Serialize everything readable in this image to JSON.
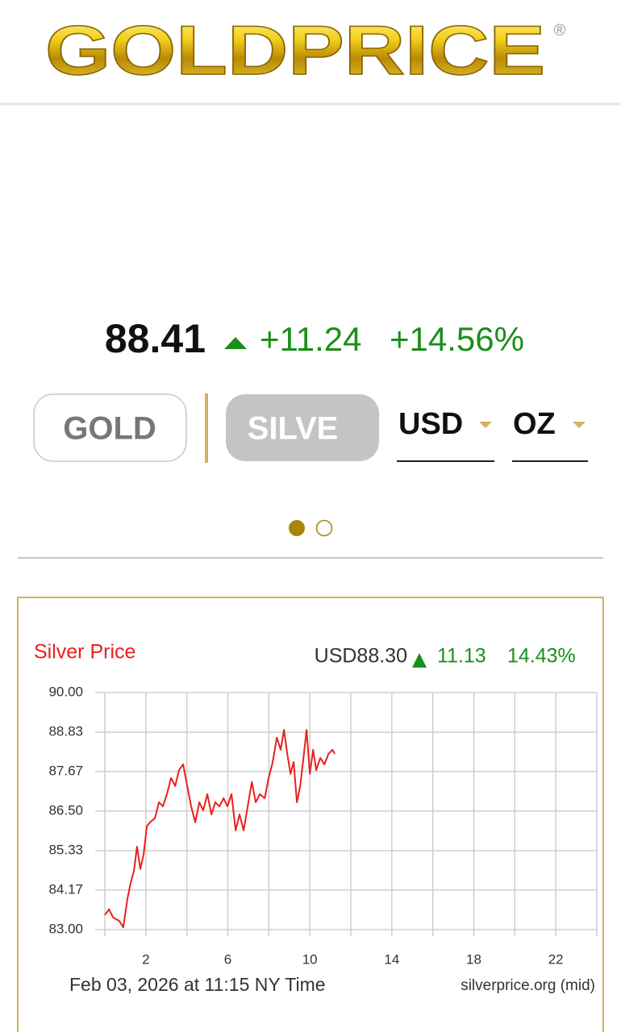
{
  "header": {
    "logo": "GOLDPRICE",
    "registered": "®"
  },
  "quote": {
    "price": "88.41",
    "change": "+11.24",
    "change_pct": "+14.56%"
  },
  "tabs": [
    "GOLD",
    "SILVE"
  ],
  "selectors": [
    "USD",
    "OZ"
  ],
  "chart_data": {
    "type": "line",
    "title": "Silver Price",
    "price": "USD88.30",
    "change": "11.13",
    "change_pct": "14.43%",
    "unit": "oz",
    "footer_date": "Feb 03, 2026 at 11:15 NY Time",
    "source": "silverprice.org (mid)",
    "color": "#e8211d",
    "x": [
      0,
      0.2,
      0.4,
      0.7,
      0.9,
      1.1,
      1.26,
      1.42,
      1.57,
      1.73,
      1.89,
      2.05,
      2.2,
      2.44,
      2.64,
      2.83,
      3.03,
      3.23,
      3.43,
      3.62,
      3.82,
      4.02,
      4.21,
      4.41,
      4.61,
      4.8,
      5.0,
      5.2,
      5.39,
      5.59,
      5.79,
      5.98,
      6.18,
      6.38,
      6.57,
      6.77,
      6.97,
      7.17,
      7.36,
      7.56,
      7.8,
      7.99,
      8.19,
      8.39,
      8.58,
      8.74,
      8.9,
      9.06,
      9.21,
      9.37,
      9.53,
      9.69,
      9.84,
      10.0,
      10.16,
      10.31,
      10.51,
      10.71,
      10.91,
      11.1,
      11.22
    ],
    "values": [
      83.43,
      83.6,
      83.36,
      83.26,
      83.07,
      83.9,
      84.38,
      84.74,
      85.45,
      84.79,
      85.21,
      86.05,
      86.17,
      86.29,
      86.76,
      86.64,
      87.0,
      87.48,
      87.24,
      87.71,
      87.88,
      87.24,
      86.64,
      86.17,
      86.76,
      86.52,
      87.0,
      86.4,
      86.76,
      86.64,
      86.88,
      86.64,
      87.0,
      85.93,
      86.4,
      85.93,
      86.64,
      87.36,
      86.76,
      87.0,
      86.88,
      87.48,
      87.95,
      88.67,
      88.31,
      88.9,
      88.19,
      87.6,
      87.95,
      86.76,
      87.24,
      88.07,
      88.9,
      87.6,
      88.31,
      87.71,
      88.07,
      87.88,
      88.19,
      88.31,
      88.19
    ],
    "xlim": [
      0,
      24
    ],
    "xticks": [
      2,
      6,
      10,
      14,
      18,
      22
    ],
    "xgrid": [
      0,
      2,
      4,
      6,
      8,
      10,
      12,
      14,
      16,
      18,
      20,
      22,
      24
    ],
    "ylim": [
      83,
      90
    ],
    "yticks": [
      {
        "value": 90,
        "label": "90.00"
      },
      {
        "value": 88.83,
        "label": "88.83"
      },
      {
        "value": 87.67,
        "label": "87.67"
      },
      {
        "value": 86.5,
        "label": "86.50"
      },
      {
        "value": 85.33,
        "label": "85.33"
      },
      {
        "value": 84.17,
        "label": "84.17"
      },
      {
        "value": 83,
        "label": "83.00"
      }
    ],
    "grid": true
  }
}
